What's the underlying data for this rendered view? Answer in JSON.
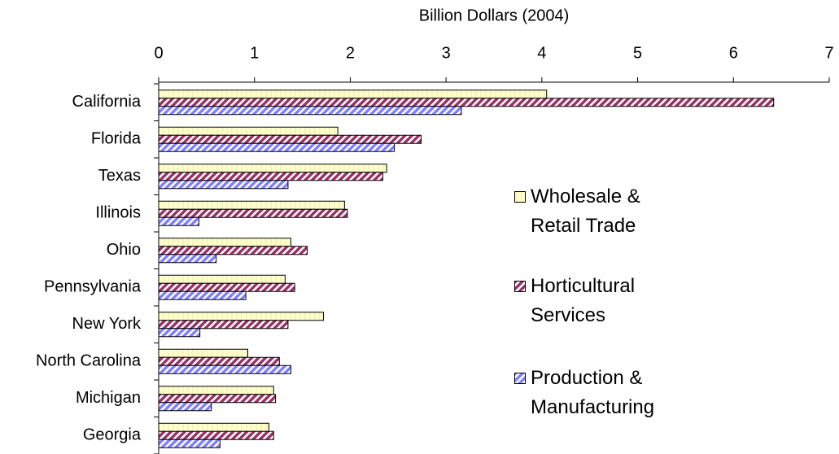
{
  "chart_data": {
    "type": "bar",
    "orientation": "horizontal",
    "x_label": "Billion Dollars (2004)",
    "categories": [
      "California",
      "Florida",
      "Texas",
      "Illinois",
      "Ohio",
      "Pennsylvania",
      "New York",
      "North Carolina",
      "Michigan",
      "Georgia"
    ],
    "series": [
      {
        "name": "Wholesale & Retail Trade",
        "color": "#ffffcc",
        "values": [
          4.05,
          1.87,
          2.38,
          1.94,
          1.38,
          1.32,
          1.72,
          0.93,
          1.2,
          1.15
        ]
      },
      {
        "name": "Horticultural Services",
        "color": "#993366",
        "values": [
          6.42,
          2.74,
          2.34,
          1.97,
          1.55,
          1.42,
          1.35,
          1.26,
          1.22,
          1.2
        ]
      },
      {
        "name": "Production & Manufacturing",
        "color": "#8080ff",
        "values": [
          3.16,
          2.46,
          1.35,
          0.42,
          0.6,
          0.91,
          0.43,
          1.38,
          0.55,
          0.64
        ]
      }
    ],
    "xlim": [
      0,
      7
    ],
    "xticks": [
      0,
      1,
      2,
      3,
      4,
      5,
      6,
      7
    ],
    "grid": false,
    "legend": "right"
  }
}
